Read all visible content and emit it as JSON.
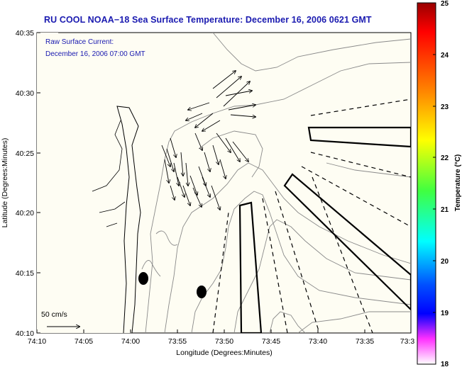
{
  "title": "RU COOL  NOAA−18  Sea Surface Temperature:  December 16, 2006 0621 GMT",
  "note_line1": "Raw Surface Current:",
  "note_line2": "December 16, 2006 07:00 GMT",
  "scale_label": "50 cm/s",
  "x_axis_label": "Longitude (Degrees:Minutes)",
  "y_axis_label": "Latitude (Degrees:Minutes)",
  "colorbar_label": "Temperature (°C)",
  "x_ticks": [
    "74:10",
    "74:05",
    "74:00",
    "73:55",
    "73:50",
    "73:45",
    "73:40",
    "73:35",
    "73:3"
  ],
  "y_ticks": [
    "40:35",
    "40:30",
    "40:25",
    "40:20",
    "40:15",
    "40:10"
  ],
  "colorbar_ticks": [
    "25",
    "24",
    "23",
    "22",
    "21",
    "20",
    "19",
    "18"
  ],
  "colors": {
    "title": "#1a1ab0",
    "map_background": "#fefdf3",
    "colormap": [
      "#ff0000",
      "#ff8a00",
      "#ffff00",
      "#40ff40",
      "#00ffff",
      "#0040ff",
      "#0000ff",
      "#ff40ff"
    ]
  }
}
